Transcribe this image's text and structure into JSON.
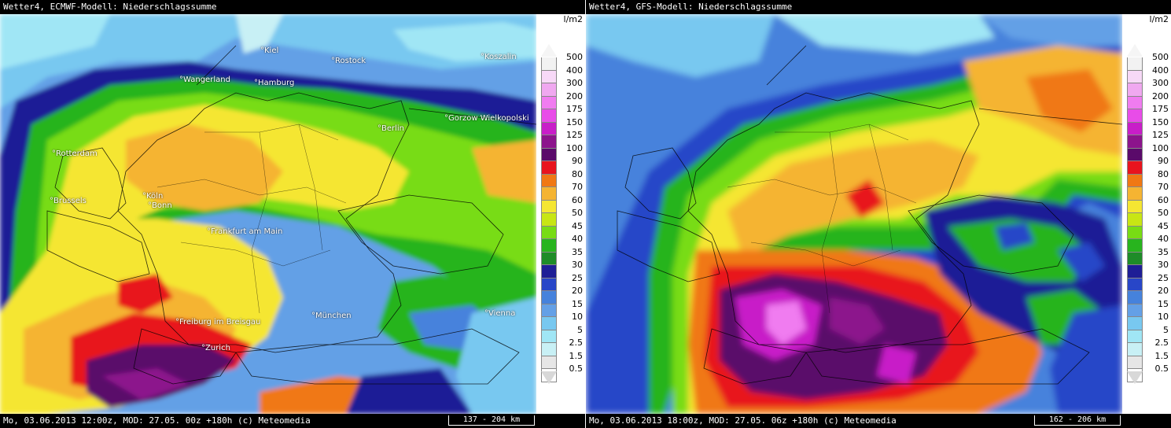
{
  "legend": {
    "unit": "l/m2",
    "levels": [
      {
        "label": "500",
        "color": "#f2f2f2"
      },
      {
        "label": "400",
        "color": "#f7d9f7"
      },
      {
        "label": "300",
        "color": "#f0a8f0"
      },
      {
        "label": "200",
        "color": "#f07cf0"
      },
      {
        "label": "175",
        "color": "#e84ce8"
      },
      {
        "label": "150",
        "color": "#c81ec8"
      },
      {
        "label": "125",
        "color": "#8c148c"
      },
      {
        "label": "100",
        "color": "#5a0a6a"
      },
      {
        "label": "90",
        "color": "#e8141e"
      },
      {
        "label": "80",
        "color": "#f07814"
      },
      {
        "label": "70",
        "color": "#f5b432"
      },
      {
        "label": "60",
        "color": "#f5e632"
      },
      {
        "label": "50",
        "color": "#c8e614"
      },
      {
        "label": "45",
        "color": "#78dc14"
      },
      {
        "label": "40",
        "color": "#28b41e"
      },
      {
        "label": "35",
        "color": "#1e8c28"
      },
      {
        "label": "30",
        "color": "#1e1e96"
      },
      {
        "label": "25",
        "color": "#2846c8"
      },
      {
        "label": "20",
        "color": "#4682dc"
      },
      {
        "label": "15",
        "color": "#64a0e6"
      },
      {
        "label": "10",
        "color": "#78c8f0"
      },
      {
        "label": "5",
        "color": "#a0e6f5"
      },
      {
        "label": "2.5",
        "color": "#c8f0f5"
      },
      {
        "label": "1.5",
        "color": "#e6e6e6"
      },
      {
        "label": "0.5",
        "color": "#ffffff"
      }
    ]
  },
  "panels": [
    {
      "title": "Wetter4, ECMWF-Modell: Niederschlagssumme",
      "footer": "Mo, 03.06.2013 12:00z, MOD: 27.05. 00z +180h (c) Meteomedia",
      "scale": "137 - 204 km",
      "cities": [
        {
          "name": "°Kiel"
        },
        {
          "name": "°Rostock"
        },
        {
          "name": "°Koszalin"
        },
        {
          "name": "°Wangerland"
        },
        {
          "name": "°Hamburg"
        },
        {
          "name": "°Berlin"
        },
        {
          "name": "°Gorzow Wielkopolski"
        },
        {
          "name": "°Rotterdam"
        },
        {
          "name": "°Köln"
        },
        {
          "name": "°Bonn"
        },
        {
          "name": "°Brussels"
        },
        {
          "name": "°Frankfurt am Main"
        },
        {
          "name": "°Freiburg im Breisgau"
        },
        {
          "name": "°München"
        },
        {
          "name": "°Vienna"
        },
        {
          "name": "°Zurich"
        }
      ]
    },
    {
      "title": "Wetter4, GFS-Modell: Niederschlagssumme",
      "footer": "Mo, 03.06.2013 18:00z, MOD: 27.05. 06z +180h (c) Meteomedia",
      "scale": "162 - 206 km",
      "cities": []
    }
  ]
}
